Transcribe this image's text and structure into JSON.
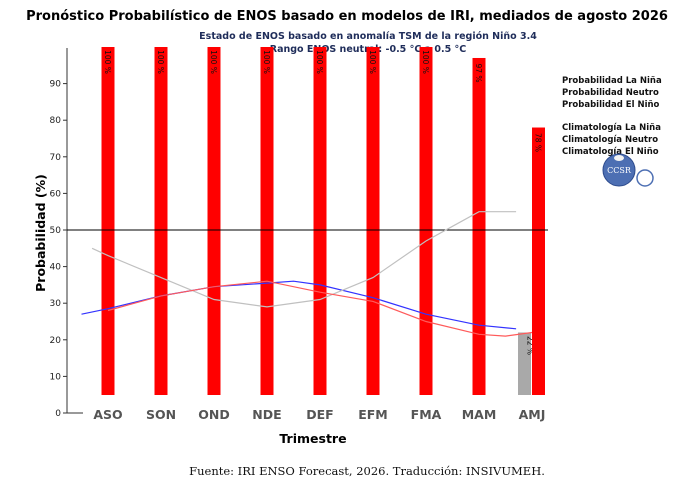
{
  "chart_data": {
    "type": "bar",
    "title": "Pronóstico Probabilístico de ENOS basado en modelos de IRI, mediados de agosto 2026",
    "subtitle_lines": [
      "Estado de ENOS basado en anomalía TSM de la región Niño 3.4",
      "Rango ENOS neutral: -0.5 °C a 0.5 °C"
    ],
    "xlabel": "Trimestre",
    "ylabel": "Probabilidad (%)",
    "ylim": [
      0,
      100
    ],
    "yticks": [
      0,
      10,
      20,
      30,
      40,
      50,
      60,
      70,
      80,
      90
    ],
    "reference_line": 50,
    "categories": [
      "ASO",
      "SON",
      "OND",
      "NDE",
      "DEF",
      "EFM",
      "FMA",
      "MAM",
      "AMJ"
    ],
    "series": [
      {
        "name": "Probabilidad El Niño",
        "color": "#ff0000",
        "values": [
          100,
          100,
          100,
          100,
          100,
          100,
          100,
          97,
          78
        ],
        "labels": [
          "100 %",
          "100 %",
          "100 %",
          "100 %",
          "100 %",
          "100 %",
          "100 %",
          "97 %",
          "78 %"
        ]
      },
      {
        "name": "Probabilidad Neutro",
        "color": "#a9a9a9",
        "values": [
          0,
          0,
          0,
          0,
          0,
          0,
          0,
          0,
          22
        ],
        "labels": [
          "",
          "",
          "",
          "",
          "",
          "",
          "",
          "",
          "22 %"
        ]
      }
    ],
    "climatology": [
      {
        "name": "Climatología La Niña",
        "color": "#3333ff",
        "x": [
          -0.5,
          0,
          1,
          2,
          3,
          3.5,
          4,
          5,
          6,
          7,
          7.7
        ],
        "values": [
          27,
          28.5,
          32,
          34.5,
          35.5,
          36,
          35,
          31.5,
          27,
          24,
          23
        ]
      },
      {
        "name": "Climatología Neutro",
        "color": "#c0c0c0",
        "x": [
          -0.3,
          0,
          1,
          2,
          3,
          4,
          5,
          6,
          6.5,
          7,
          7.7
        ],
        "values": [
          45,
          43,
          37,
          31,
          29,
          31,
          37,
          47,
          51,
          55,
          55
        ]
      },
      {
        "name": "Climatología El Niño",
        "color": "#ff5a5a",
        "x": [
          0,
          1,
          2,
          3,
          4,
          5,
          6,
          7,
          7.5,
          8
        ],
        "values": [
          28,
          32,
          34.5,
          36,
          33,
          30.5,
          25,
          21.5,
          21,
          22
        ]
      }
    ],
    "legend": {
      "position": "right",
      "entries": [
        "Probabilidad La Niña",
        "Probabilidad Neutro",
        "Probabilidad El Niño",
        "Climatología La Niña",
        "Climatología Neutro",
        "Climatología El Niño"
      ]
    },
    "logo_text": "CCSR",
    "source": "Fuente: IRI ENSO Forecast, 2026. Traducción: INSIVUMEH."
  }
}
